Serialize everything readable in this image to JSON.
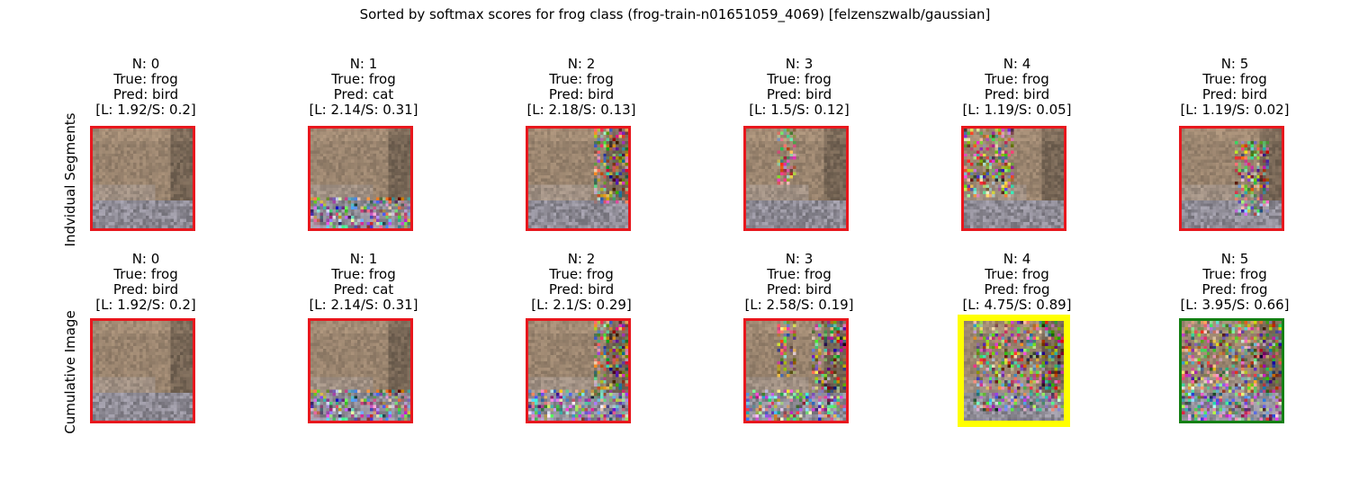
{
  "suptitle": "Sorted by softmax scores for frog class (frog-train-n01651059_4069) [felzenszwalb/gaussian]",
  "rows": [
    {
      "label": "Indvidual Segments",
      "panels": [
        {
          "n": "N: 0",
          "true": "True: frog",
          "pred": "Pred: bird",
          "scores": "[L: 1.92/S: 0.2]",
          "border": "#e8171d",
          "noise": "none"
        },
        {
          "n": "N: 1",
          "true": "True: frog",
          "pred": "Pred: cat",
          "scores": "[L: 2.14/S: 0.31]",
          "border": "#e8171d",
          "noise": "bottom"
        },
        {
          "n": "N: 2",
          "true": "True: frog",
          "pred": "Pred: bird",
          "scores": "[L: 2.18/S: 0.13]",
          "border": "#e8171d",
          "noise": "right"
        },
        {
          "n": "N: 3",
          "true": "True: frog",
          "pred": "Pred: bird",
          "scores": "[L: 1.5/S: 0.12]",
          "border": "#e8171d",
          "noise": "center"
        },
        {
          "n": "N: 4",
          "true": "True: frog",
          "pred": "Pred: bird",
          "scores": "[L: 1.19/S: 0.05]",
          "border": "#e8171d",
          "noise": "left"
        },
        {
          "n": "N: 5",
          "true": "True: frog",
          "pred": "Pred: bird",
          "scores": "[L: 1.19/S: 0.02]",
          "border": "#e8171d",
          "noise": "rightcenter"
        }
      ]
    },
    {
      "label": "Cumulative Image",
      "panels": [
        {
          "n": "N: 0",
          "true": "True: frog",
          "pred": "Pred: bird",
          "scores": "[L: 1.92/S: 0.2]",
          "border": "#e8171d",
          "noise": "none"
        },
        {
          "n": "N: 1",
          "true": "True: frog",
          "pred": "Pred: cat",
          "scores": "[L: 2.14/S: 0.31]",
          "border": "#e8171d",
          "noise": "bottom"
        },
        {
          "n": "N: 2",
          "true": "True: frog",
          "pred": "Pred: bird",
          "scores": "[L: 2.1/S: 0.29]",
          "border": "#e8171d",
          "noise": "bottom+right"
        },
        {
          "n": "N: 3",
          "true": "True: frog",
          "pred": "Pred: bird",
          "scores": "[L: 2.58/S: 0.19]",
          "border": "#e8171d",
          "noise": "bottom+right+center"
        },
        {
          "n": "N: 4",
          "true": "True: frog",
          "pred": "Pred: frog",
          "scores": "[L: 4.75/S: 0.89]",
          "border": "#ffff00",
          "noise": "most"
        },
        {
          "n": "N: 5",
          "true": "True: frog",
          "pred": "Pred: frog",
          "scores": "[L: 3.95/S: 0.66]",
          "border": "#148014",
          "noise": "all"
        }
      ]
    }
  ]
}
